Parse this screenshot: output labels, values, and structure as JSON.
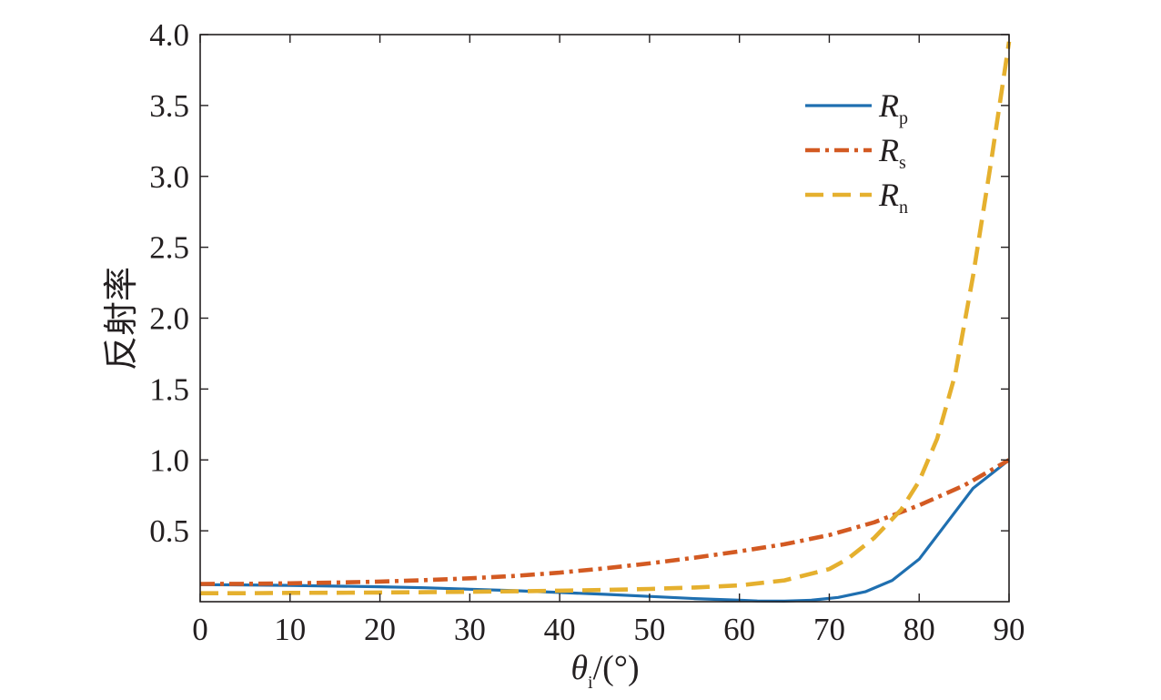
{
  "chart_data": {
    "type": "line",
    "ylabel": "反射率",
    "xlabel_symbol": "θ",
    "xlabel_subscript": "i",
    "xlabel_unit": "/(°)",
    "xlim": [
      0,
      90
    ],
    "ylim": [
      0,
      4.0
    ],
    "xticks": [
      0,
      10,
      20,
      30,
      40,
      50,
      60,
      70,
      80,
      90
    ],
    "yticks": [
      0.5,
      1.0,
      1.5,
      2.0,
      2.5,
      3.0,
      3.5,
      4.0
    ],
    "grid": false,
    "legend_position": "top-right",
    "series": [
      {
        "name": "R_p",
        "label_main": "R",
        "label_sub": "p",
        "color": "#1f6fb0",
        "style": "solid",
        "x": [
          0,
          5,
          10,
          15,
          20,
          25,
          30,
          35,
          40,
          45,
          50,
          55,
          60,
          62,
          65,
          68,
          71,
          74,
          77,
          80,
          83,
          86,
          90
        ],
        "y": [
          0.12,
          0.118,
          0.115,
          0.11,
          0.105,
          0.098,
          0.088,
          0.078,
          0.065,
          0.052,
          0.037,
          0.022,
          0.01,
          0.005,
          0.004,
          0.01,
          0.03,
          0.07,
          0.15,
          0.3,
          0.55,
          0.8,
          1.0
        ]
      },
      {
        "name": "R_s",
        "label_main": "R",
        "label_sub": "s",
        "color": "#d35a22",
        "style": "dashdot",
        "x": [
          0,
          5,
          10,
          15,
          20,
          25,
          30,
          35,
          40,
          45,
          50,
          55,
          60,
          65,
          70,
          75,
          80,
          85,
          90
        ],
        "y": [
          0.125,
          0.126,
          0.13,
          0.135,
          0.142,
          0.152,
          0.165,
          0.182,
          0.205,
          0.235,
          0.27,
          0.31,
          0.355,
          0.405,
          0.47,
          0.56,
          0.68,
          0.82,
          1.0
        ]
      },
      {
        "name": "R_n",
        "label_main": "R",
        "label_sub": "n",
        "color": "#e5b02e",
        "style": "dashed",
        "x": [
          0,
          5,
          10,
          15,
          20,
          25,
          30,
          35,
          40,
          45,
          50,
          55,
          60,
          65,
          70,
          72,
          75,
          78,
          80,
          82,
          84,
          86,
          88,
          90
        ],
        "y": [
          0.06,
          0.06,
          0.062,
          0.063,
          0.065,
          0.067,
          0.07,
          0.073,
          0.078,
          0.083,
          0.09,
          0.1,
          0.115,
          0.15,
          0.23,
          0.3,
          0.45,
          0.65,
          0.85,
          1.15,
          1.6,
          2.3,
          3.1,
          3.95
        ]
      }
    ]
  }
}
